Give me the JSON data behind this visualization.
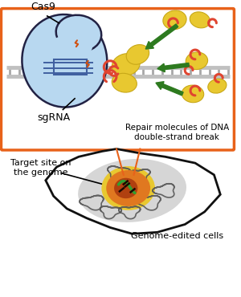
{
  "bg_color": "#ffffff",
  "orange_border_color": "#e8621a",
  "labels": {
    "cas9": "Cas9",
    "sgrna": "sgRNA",
    "repair": "Repair molecules of DNA\ndouble-strand break",
    "target": "Target site on\nthe genome",
    "genome_edited": "Genome-edited cells"
  },
  "colors": {
    "cas9_body": "#b8d8f0",
    "cas9_outline": "#222244",
    "dna_strand": "#c0c0c0",
    "dna_rung": "#a8a8a8",
    "yellow_blob": "#e8c830",
    "yellow_edge": "#c8a818",
    "red_hook": "#e04530",
    "green_arrow": "#2d7a1f",
    "orange_line": "#e8621a",
    "cell_outline": "#111111",
    "nucleus_gray": "#c0c0c0",
    "nucleus_yellow": "#e8c830",
    "nucleus_orange": "#e07820",
    "nucleus_dark": "#b04010",
    "chromatin": "#555555",
    "green_strand": "#30a030",
    "lightning": "#d05010",
    "inner_line": "#4060a0"
  }
}
